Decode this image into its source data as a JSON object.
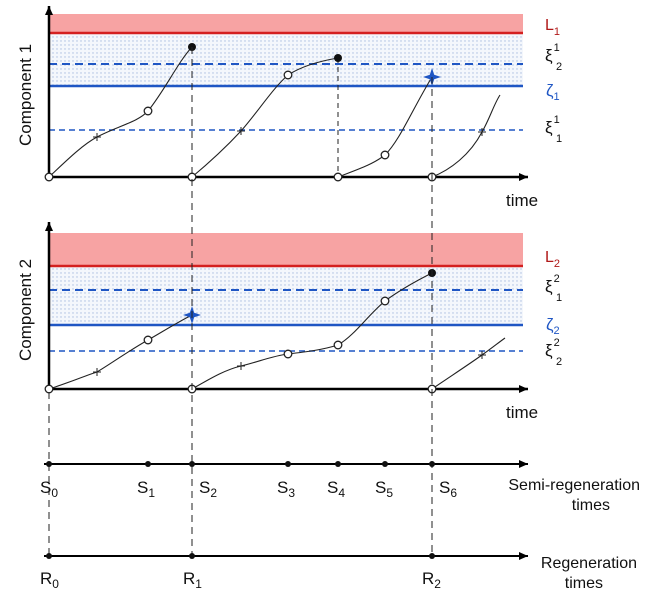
{
  "components": [
    {
      "axis_label": "Component 1",
      "time_label": "time",
      "threshold": {
        "name": "L",
        "sub": "1"
      },
      "level_zeta": {
        "name": "ζ",
        "sub": "1"
      },
      "level_upper": {
        "name": "ξ",
        "sup": "1",
        "sub": "2"
      },
      "level_lower": {
        "name": "ξ",
        "sup": "1",
        "sub": "1"
      }
    },
    {
      "axis_label": "Component 2",
      "time_label": "time",
      "threshold": {
        "name": "L",
        "sub": "2"
      },
      "level_zeta": {
        "name": "ζ",
        "sub": "2"
      },
      "level_upper": {
        "name": "ξ",
        "sup": "2",
        "sub": "1"
      },
      "level_lower": {
        "name": "ξ",
        "sup": "2",
        "sub": "2"
      }
    }
  ],
  "semi_regeneration": {
    "label_line1": "Semi-regeneration",
    "label_line2": "times",
    "ticks": [
      {
        "name": "S",
        "sub": "0"
      },
      {
        "name": "S",
        "sub": "1"
      },
      {
        "name": "S",
        "sub": "2"
      },
      {
        "name": "S",
        "sub": "3"
      },
      {
        "name": "S",
        "sub": "4"
      },
      {
        "name": "S",
        "sub": "5"
      },
      {
        "name": "S",
        "sub": "6"
      }
    ]
  },
  "regeneration": {
    "label_line1": "Regeneration",
    "label_line2": "times",
    "ticks": [
      {
        "name": "R",
        "sub": "0"
      },
      {
        "name": "R",
        "sub": "1"
      },
      {
        "name": "R",
        "sub": "2"
      }
    ]
  },
  "colors": {
    "failure_zone": "#f7a3a3",
    "threshold_line": "#d42020",
    "zeta_line": "#1f56c4",
    "xi_line": "#1f56c4",
    "dots": "#a9bde0",
    "threshold_label": "#b01818",
    "zeta_label": "#1f56c4",
    "star": "#1f56c4"
  }
}
